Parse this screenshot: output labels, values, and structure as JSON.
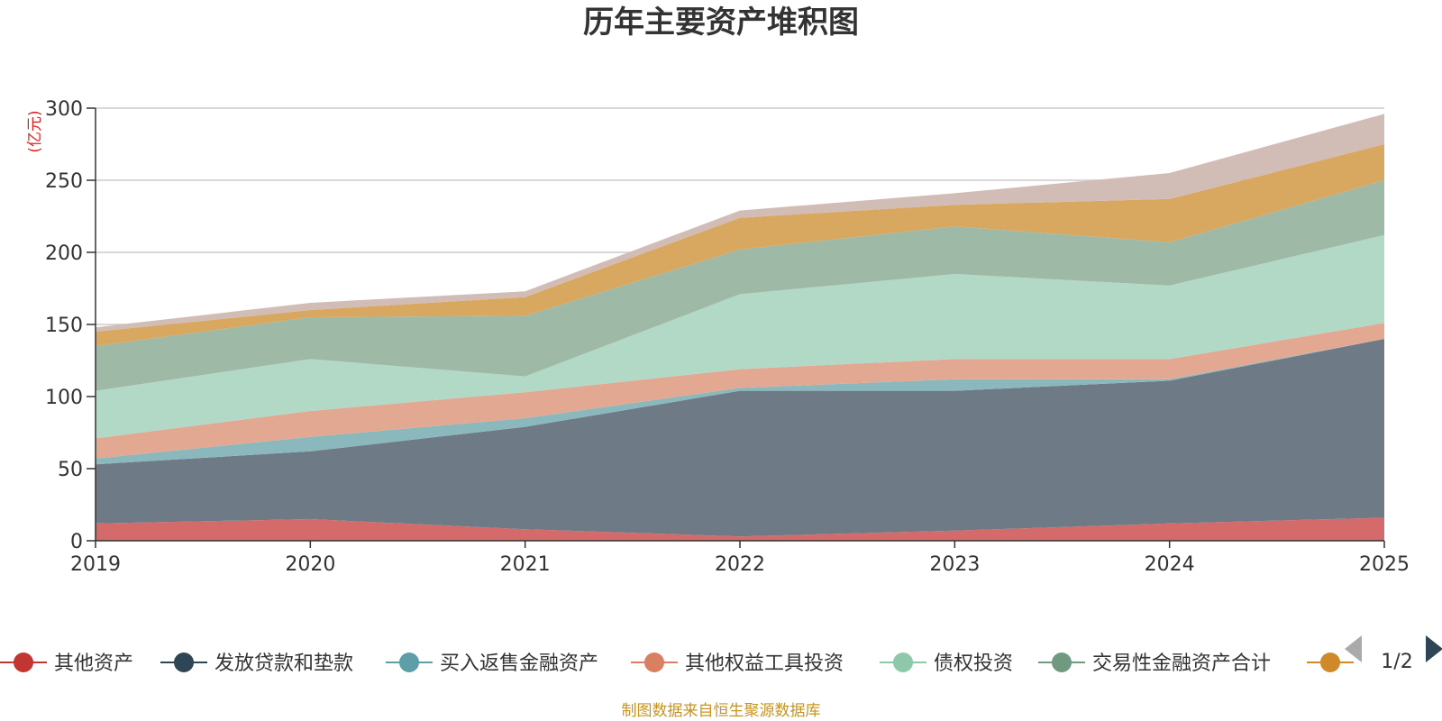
{
  "chart_data": {
    "type": "area",
    "stacked": true,
    "title": "历年主要资产堆积图",
    "unit_label": "(亿元)",
    "categories": [
      "2019",
      "2020",
      "2021",
      "2022",
      "2023",
      "2024",
      "2025"
    ],
    "ylim": [
      0,
      300
    ],
    "yticks": [
      0,
      50,
      100,
      150,
      200,
      250,
      300
    ],
    "grid": true,
    "series": [
      {
        "name": "其他资产",
        "color": "#d46a6a",
        "values": [
          12,
          15,
          8,
          3,
          7,
          12,
          16
        ]
      },
      {
        "name": "发放贷款和垫款",
        "color": "#6e7b86",
        "values": [
          41,
          47,
          71,
          101,
          97,
          99,
          124
        ]
      },
      {
        "name": "买入返售金融资产",
        "color": "#8ab8bd",
        "values": [
          4,
          10,
          6,
          2,
          8,
          1,
          0
        ]
      },
      {
        "name": "其他权益工具投资",
        "color": "#e3a891",
        "values": [
          14,
          18,
          18,
          13,
          14,
          14,
          11
        ]
      },
      {
        "name": "债权投资",
        "color": "#b2d8c6",
        "values": [
          33,
          36,
          11,
          52,
          59,
          51,
          61
        ]
      },
      {
        "name": "交易性金融资产合计",
        "color": "#9eb9a6",
        "values": [
          31,
          29,
          42,
          31,
          33,
          30,
          38
        ]
      },
      {
        "name": "",
        "color": "#d8a860",
        "values": [
          10,
          5,
          13,
          22,
          15,
          30,
          25
        ]
      },
      {
        "name": "",
        "color": "#d2bcb6",
        "values": [
          3,
          5,
          4,
          5,
          8,
          18,
          21
        ]
      }
    ],
    "legend": {
      "items": [
        {
          "name": "其他资产",
          "color": "#c33531"
        },
        {
          "name": "发放贷款和垫款",
          "color": "#2e4556"
        },
        {
          "name": "买入返售金融资产",
          "color": "#5d9ea8"
        },
        {
          "name": "其他权益工具投资",
          "color": "#da8062"
        },
        {
          "name": "债权投资",
          "color": "#8dc8ab"
        },
        {
          "name": "交易性金融资产合计",
          "color": "#6f9a7f"
        },
        {
          "name": "",
          "color": "#d0892a"
        }
      ],
      "page": "1/2"
    },
    "source": "制图数据来自恒生聚源数据库"
  }
}
